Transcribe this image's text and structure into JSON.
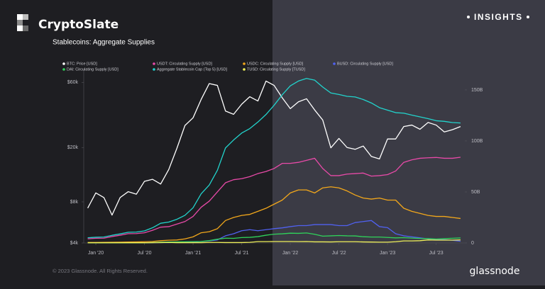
{
  "header": {
    "brand": "CryptoSlate",
    "badge": "INSIGHTS"
  },
  "chart_data": {
    "type": "line",
    "title": "Stablecoins: Aggregate Supplies",
    "x": [
      "2019-12",
      "2020-01",
      "2020-02",
      "2020-03",
      "2020-04",
      "2020-05",
      "2020-06",
      "2020-07",
      "2020-08",
      "2020-09",
      "2020-10",
      "2020-11",
      "2020-12",
      "2021-01",
      "2021-02",
      "2021-03",
      "2021-04",
      "2021-05",
      "2021-06",
      "2021-07",
      "2021-08",
      "2021-09",
      "2021-10",
      "2021-11",
      "2021-12",
      "2022-01",
      "2022-02",
      "2022-03",
      "2022-04",
      "2022-05",
      "2022-06",
      "2022-07",
      "2022-08",
      "2022-09",
      "2022-10",
      "2022-11",
      "2022-12",
      "2023-01",
      "2023-02",
      "2023-03",
      "2023-04",
      "2023-05",
      "2023-06",
      "2023-07",
      "2023-08",
      "2023-09",
      "2023-10"
    ],
    "xticks": [
      {
        "value": "2020-01",
        "label": "Jan '20"
      },
      {
        "value": "2020-07",
        "label": "Jul '20"
      },
      {
        "value": "2021-01",
        "label": "Jan '21"
      },
      {
        "value": "2021-07",
        "label": "Jul '21"
      },
      {
        "value": "2022-01",
        "label": "Jan '22"
      },
      {
        "value": "2022-07",
        "label": "Jul '22"
      },
      {
        "value": "2023-01",
        "label": "Jan '23"
      },
      {
        "value": "2023-07",
        "label": "Jul '23"
      }
    ],
    "yscale": "log",
    "ylim": [
      4000,
      72000
    ],
    "yticks": [
      {
        "value": 4000,
        "label": "$4k"
      },
      {
        "value": 8000,
        "label": "$8k"
      },
      {
        "value": 20000,
        "label": "$20k"
      },
      {
        "value": 60000,
        "label": "$60k"
      }
    ],
    "y2lim": [
      0,
      168
    ],
    "y2ticks": [
      0,
      {
        "value": 50,
        "label": "50B"
      },
      {
        "value": 100,
        "label": "100B"
      },
      {
        "value": 150,
        "label": "150B"
      }
    ],
    "grid": false,
    "series": [
      {
        "name": "BTC: Price [USD]",
        "color": "#ffffff",
        "axis": "y",
        "values": [
          7200,
          9300,
          8600,
          6400,
          8600,
          9500,
          9100,
          11300,
          11700,
          10800,
          13800,
          19700,
          29000,
          33000,
          45000,
          58800,
          57000,
          37000,
          35000,
          41500,
          47100,
          43800,
          61300,
          57000,
          46300,
          38500,
          43200,
          45500,
          37700,
          31800,
          19900,
          23300,
          20000,
          19400,
          20500,
          17200,
          16500,
          23100,
          23100,
          28500,
          29200,
          27200,
          30500,
          29200,
          26000,
          27000,
          28500
        ]
      },
      {
        "name": "USDT: Circulating Supply [USD]",
        "color": "#e84aa8",
        "axis": "y2",
        "values": [
          4.1,
          4.6,
          4.7,
          6.3,
          7.6,
          9.1,
          9.2,
          10,
          12.4,
          15.5,
          16,
          18.5,
          21,
          26,
          35,
          41,
          50,
          59,
          62,
          63,
          65,
          68,
          70,
          73,
          78,
          78,
          79,
          81,
          83,
          73,
          66,
          66,
          67.5,
          68,
          68.5,
          65.5,
          66,
          67,
          70.5,
          79,
          81.5,
          83,
          83.5,
          83.8,
          83,
          83,
          84
        ]
      },
      {
        "name": "USDC: Circulating Supply [USD]",
        "color": "#f2a71b",
        "axis": "y2",
        "values": [
          0.5,
          0.5,
          0.6,
          0.7,
          0.8,
          0.9,
          1,
          1.2,
          1.5,
          2.2,
          2.7,
          2.9,
          4,
          6,
          10,
          11,
          14,
          22,
          25,
          27,
          28,
          31,
          34,
          38,
          42,
          49,
          52,
          52,
          49,
          54,
          55,
          54,
          51,
          47,
          44,
          43,
          44,
          42,
          42,
          34,
          31,
          29,
          27,
          26,
          26,
          25,
          24
        ]
      },
      {
        "name": "BUSD: Circulating Supply [USD]",
        "color": "#5061f0",
        "axis": "y2",
        "values": [
          0.2,
          0.2,
          0.2,
          0.2,
          0.2,
          0.2,
          0.2,
          0.2,
          0.3,
          0.4,
          0.4,
          0.5,
          0.6,
          0.9,
          1.4,
          2,
          3,
          7,
          9,
          12,
          13,
          12,
          13,
          14,
          14.8,
          16,
          17,
          17,
          18,
          18,
          18,
          17,
          17,
          20,
          21,
          22,
          16,
          15,
          9,
          7,
          6,
          5,
          4,
          3.4,
          3.2,
          2.6,
          1.7
        ]
      },
      {
        "name": "DAI: Circulating Supply [USD]",
        "color": "#2fd35a",
        "axis": "y2",
        "values": [
          0.1,
          0.1,
          0.1,
          0.1,
          0.1,
          0.1,
          0.1,
          0.15,
          0.4,
          0.8,
          0.9,
          1,
          1.2,
          1.3,
          1.5,
          2.3,
          3.7,
          4.7,
          4.5,
          5.3,
          5.5,
          6.2,
          7.6,
          8.6,
          9,
          9.6,
          9.4,
          9.8,
          8.5,
          6.7,
          7,
          7.3,
          7,
          6.9,
          6.1,
          5.8,
          5.8,
          5.4,
          5,
          5.2,
          4.8,
          4.4,
          4.3,
          3.8,
          4.2,
          4.6,
          4.9
        ]
      },
      {
        "name": "Aggregate Stablecoin Cap (Top 5) [USD]",
        "color": "#22d3cc",
        "axis": "y2",
        "values": [
          5.1,
          5.6,
          5.8,
          7.5,
          8.9,
          10.5,
          10.7,
          11.8,
          14.9,
          19.3,
          20.5,
          23.2,
          27.1,
          34.5,
          48.2,
          56.8,
          71.2,
          93.1,
          100.9,
          107.7,
          112.1,
          118.5,
          125.9,
          135,
          145.2,
          154,
          158.7,
          161.2,
          159.6,
          152.8,
          147,
          145.5,
          143.7,
          143.1,
          140.6,
          137.2,
          132.6,
          130.2,
          127.7,
          127.2,
          125.3,
          123.6,
          121.8,
          119.8,
          119.2,
          118,
          117.6
        ]
      },
      {
        "name": "TUSD: Circulating Supply [TUSD]",
        "color": "#eef05a",
        "axis": "y2",
        "values": [
          0.2,
          0.2,
          0.2,
          0.2,
          0.2,
          0.2,
          0.2,
          0.2,
          0.3,
          0.4,
          0.5,
          0.3,
          0.3,
          0.3,
          0.3,
          0.5,
          0.5,
          0.4,
          0.4,
          0.4,
          0.6,
          1.3,
          1.3,
          1.4,
          1.4,
          1.4,
          1.3,
          1.4,
          1.1,
          1.1,
          1,
          1.2,
          1.2,
          1.2,
          1,
          0.9,
          0.8,
          0.8,
          1.2,
          2,
          2,
          2.2,
          3,
          2.8,
          2.8,
          2.8,
          3
        ]
      }
    ]
  },
  "footer": {
    "copyright": "© 2023 Glassnode. All Rights Reserved.",
    "logo": "glassnode"
  }
}
